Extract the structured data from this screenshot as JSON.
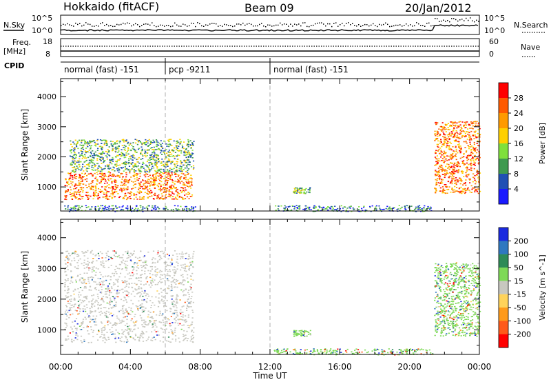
{
  "header": {
    "title": "Hokkaido (fitACF)",
    "beam": "Beam 09",
    "date": "20/Jan/2012"
  },
  "strip_labels": {
    "nsky": "N.Sky",
    "nsearch": "N.Search",
    "nsky_ticks": [
      "10^5",
      "10^0"
    ],
    "nsearch_ticks": [
      "10^5",
      "10^0"
    ],
    "freq_line1": "Freq.",
    "freq_line2": "[MHz]",
    "freq_ticks": [
      "18",
      "8"
    ],
    "nave": "Nave",
    "nave_ticks": [
      "60",
      "0"
    ],
    "cpid": "CPID"
  },
  "cpid_segments": [
    {
      "label": "normal (fast) -151",
      "start_hour": 0
    },
    {
      "label": "pcp -9211",
      "start_hour": 6
    },
    {
      "label": "normal (fast) -151",
      "start_hour": 12
    }
  ],
  "chart_data": [
    {
      "type": "heatmap",
      "name": "power-panel",
      "xlabel": "",
      "ylabel": "Slant Range [km]",
      "xlim": [
        0,
        24
      ],
      "ylim": [
        200,
        4600
      ],
      "yticks": [
        1000,
        2000,
        3000,
        4000
      ],
      "colorbar": {
        "label": "Power [dB]",
        "ticks": [
          28,
          24,
          20,
          16,
          12,
          8,
          4
        ],
        "colors": [
          "#ff0000",
          "#ff5a00",
          "#ff9a00",
          "#ffd000",
          "#7fe03c",
          "#3f9a50",
          "#2050b4",
          "#1a1aff"
        ]
      },
      "echo_regions": [
        {
          "hours": [
            0.2,
            7.5
          ],
          "range_km": [
            600,
            1500
          ],
          "level": "strong"
        },
        {
          "hours": [
            0.5,
            7.6
          ],
          "range_km": [
            1500,
            2600
          ],
          "level": "medium"
        },
        {
          "hours": [
            0.2,
            7.7
          ],
          "range_km": [
            200,
            400
          ],
          "level": "weak"
        },
        {
          "hours": [
            12.2,
            21.3
          ],
          "range_km": [
            200,
            400
          ],
          "level": "weak"
        },
        {
          "hours": [
            13.3,
            14.3
          ],
          "range_km": [
            800,
            1000
          ],
          "level": "medium"
        },
        {
          "hours": [
            21.4,
            24
          ],
          "range_km": [
            800,
            3200
          ],
          "level": "strong"
        }
      ]
    },
    {
      "type": "heatmap",
      "name": "velocity-panel",
      "xlabel": "Time UT",
      "ylabel": "Slant Range [km]",
      "xlim": [
        0,
        24
      ],
      "ylim": [
        200,
        4600
      ],
      "xticks": [
        "00:00",
        "04:00",
        "08:00",
        "12:00",
        "16:00",
        "20:00",
        "00:00"
      ],
      "yticks": [
        1000,
        2000,
        3000,
        4000
      ],
      "colorbar": {
        "label": "Velocity [m s^-1]",
        "ticks": [
          200,
          100,
          50,
          15,
          -15,
          -50,
          -100,
          -200
        ],
        "colors": [
          "#1a2adf",
          "#2f78c0",
          "#2e8b57",
          "#7ed957",
          "#c8c8c0",
          "#ffd35a",
          "#ff9a1a",
          "#ff5a1a",
          "#ff0000"
        ]
      },
      "echo_regions": [
        {
          "hours": [
            0.2,
            7.6
          ],
          "range_km": [
            600,
            3600
          ],
          "level": "near-zero"
        },
        {
          "hours": [
            12.2,
            21.3
          ],
          "range_km": [
            200,
            400
          ],
          "level": "positive"
        },
        {
          "hours": [
            13.3,
            14.3
          ],
          "range_km": [
            800,
            1000
          ],
          "level": "positive"
        },
        {
          "hours": [
            21.4,
            24
          ],
          "range_km": [
            800,
            3200
          ],
          "level": "positive"
        }
      ]
    }
  ]
}
